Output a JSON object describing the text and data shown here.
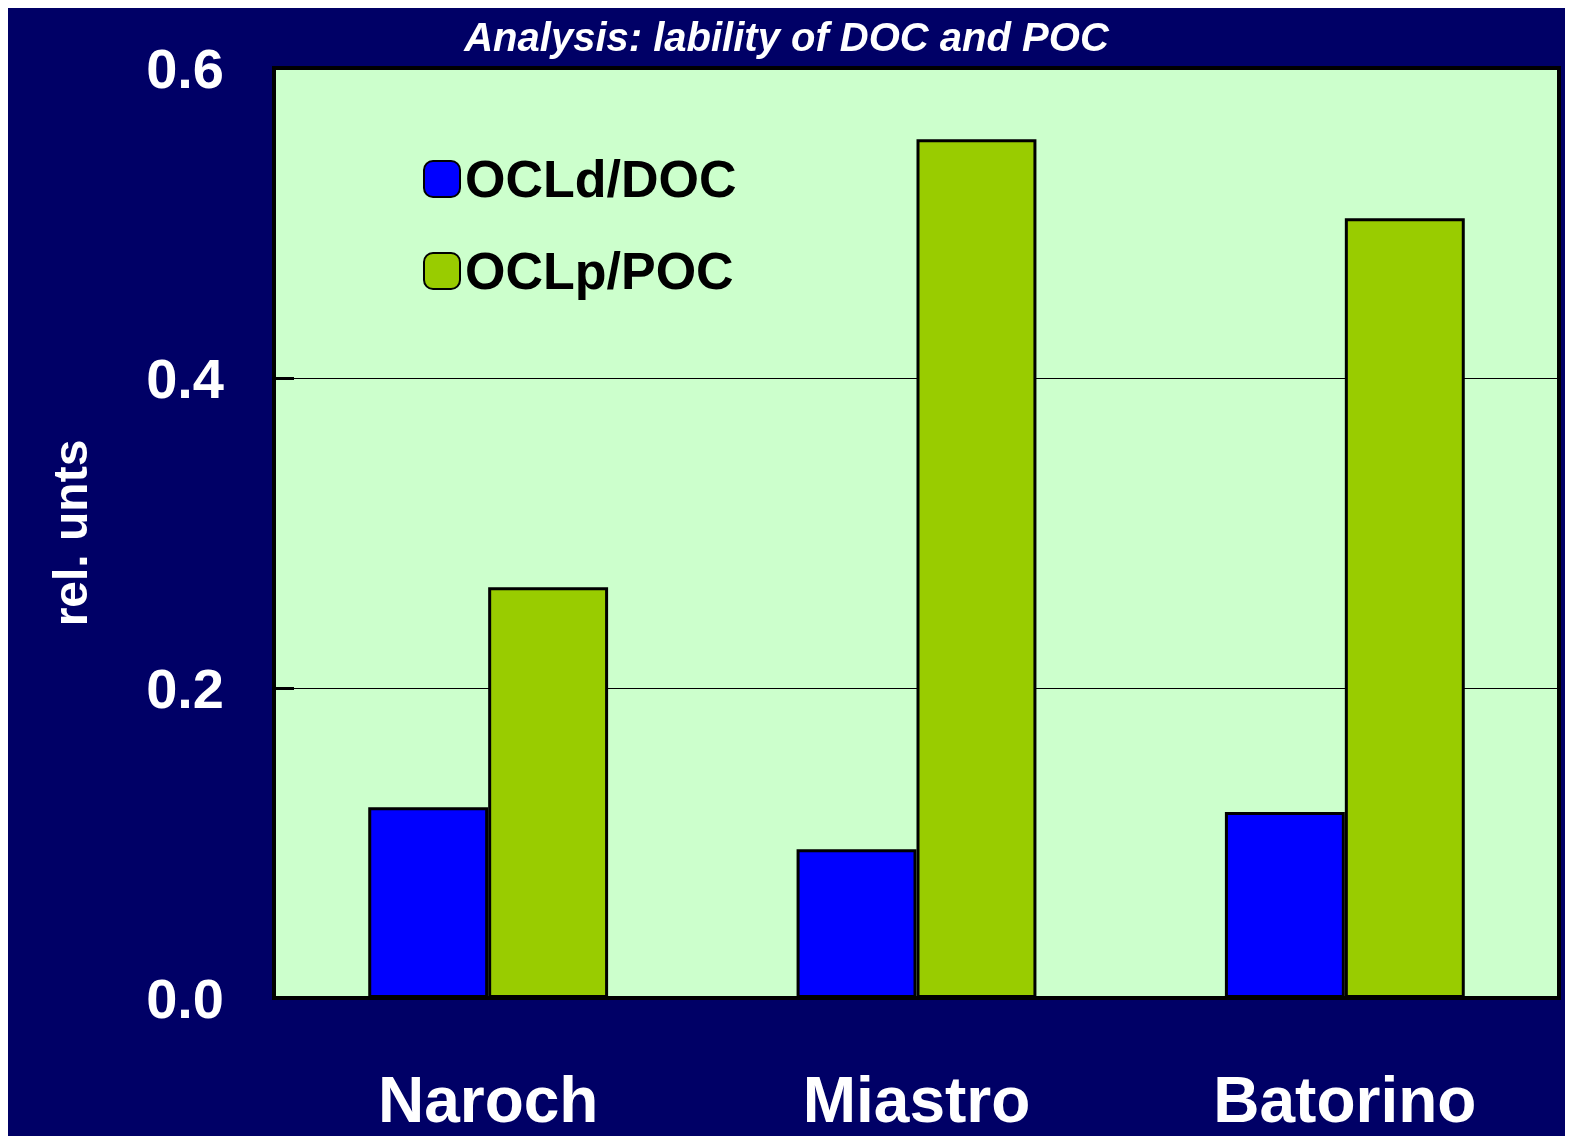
{
  "chart_data": {
    "type": "bar",
    "title": "Analysis: lability of DOC and POC",
    "ylabel": "rel. unts",
    "categories": [
      "Naroch",
      "Miastro",
      "Batorino"
    ],
    "series": [
      {
        "name": "OCLd/DOC",
        "color": "#0000ff",
        "values": [
          0.123,
          0.096,
          0.12
        ]
      },
      {
        "name": "OCLp/POC",
        "color": "#99cc00",
        "values": [
          0.265,
          0.554,
          0.503
        ]
      }
    ],
    "ylim": [
      0,
      0.6
    ],
    "yticks": [
      "0.0",
      0.2,
      0.4,
      0.6
    ],
    "grid": "y",
    "legend": "top left"
  }
}
